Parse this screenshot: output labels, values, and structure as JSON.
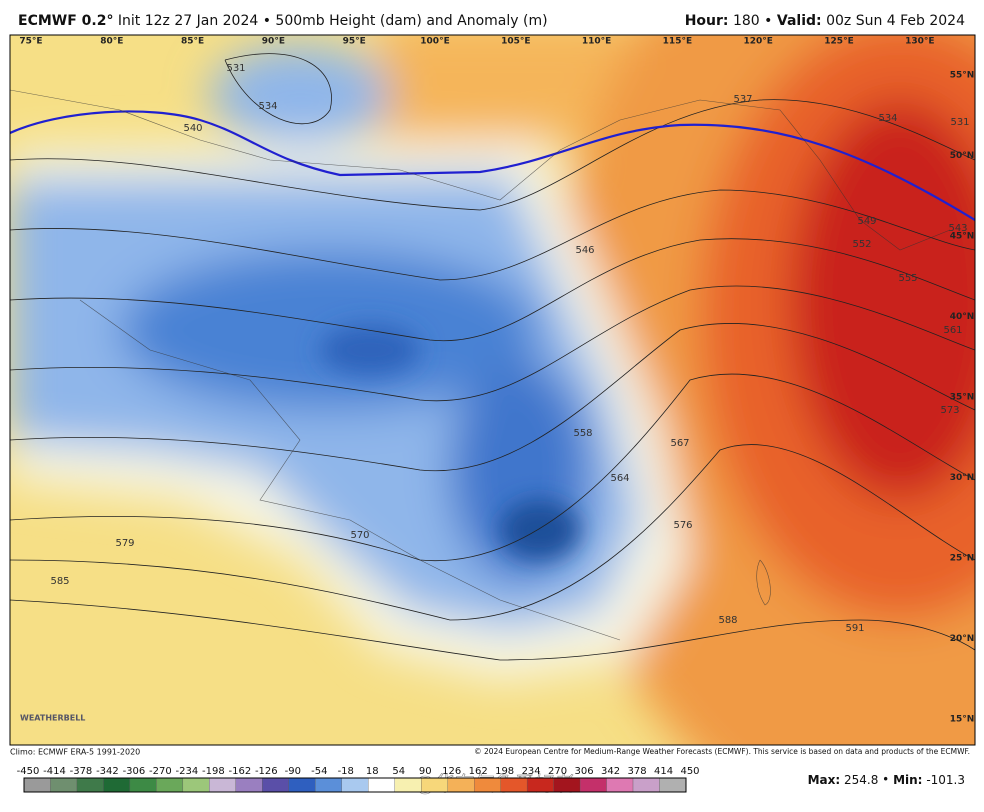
{
  "header": {
    "model": "ECMWF 0.2°",
    "init": "Init 12z 27 Jan 2024 • 500mb Height (dam) and Anomaly (m)",
    "hour_label": "Hour:",
    "hour": "180",
    "valid_label": "Valid:",
    "valid": "00z Sun 4 Feb 2024"
  },
  "map": {
    "longitudes": [
      "75°E",
      "80°E",
      "85°E",
      "90°E",
      "95°E",
      "100°E",
      "105°E",
      "110°E",
      "115°E",
      "120°E",
      "125°E",
      "130°E"
    ],
    "latitudes": [
      "55°N",
      "50°N",
      "45°N",
      "40°N",
      "35°N",
      "30°N",
      "25°N",
      "20°N",
      "15°N"
    ],
    "contour_labels": [
      531,
      534,
      540,
      537,
      534,
      531,
      543,
      549,
      552,
      555,
      561,
      573,
      546,
      558,
      567,
      564,
      570,
      576,
      579,
      585,
      588,
      591
    ],
    "logo": "WEATHERBELL",
    "watermark": "@华东气象爱好者"
  },
  "footer": {
    "climo": "Climo: ECMWF ERA-5 1991-2020",
    "copyright": "© 2024 European Centre for Medium-Range Weather Forecasts (ECMWF). This service is based on data and products of the ECMWF.",
    "max_label": "Max:",
    "max": 254.8,
    "min_label": "Min:",
    "min": -101.3
  },
  "colorbar": {
    "ticks": [
      -450,
      -414,
      -378,
      -342,
      -306,
      -270,
      -234,
      -198,
      -162,
      -126,
      -90,
      -54,
      -18,
      18,
      54,
      90,
      126,
      162,
      198,
      234,
      270,
      306,
      342,
      378,
      414,
      450
    ],
    "colors": [
      "#9a9a9a",
      "#6f8f6f",
      "#3f7a4a",
      "#1f6a35",
      "#3d8a45",
      "#6aa85a",
      "#9cc77a",
      "#c9b7d6",
      "#9a7fc0",
      "#5a4fa8",
      "#2f5fbf",
      "#5b8fd9",
      "#a9c9ef",
      "#ffffff",
      "#f7f0b0",
      "#f7d77a",
      "#f4b158",
      "#ef8a3c",
      "#e4572a",
      "#c8281e",
      "#a3151e",
      "#c4306a",
      "#de79b2",
      "#c9a0c9",
      "#b0b0b0"
    ]
  }
}
